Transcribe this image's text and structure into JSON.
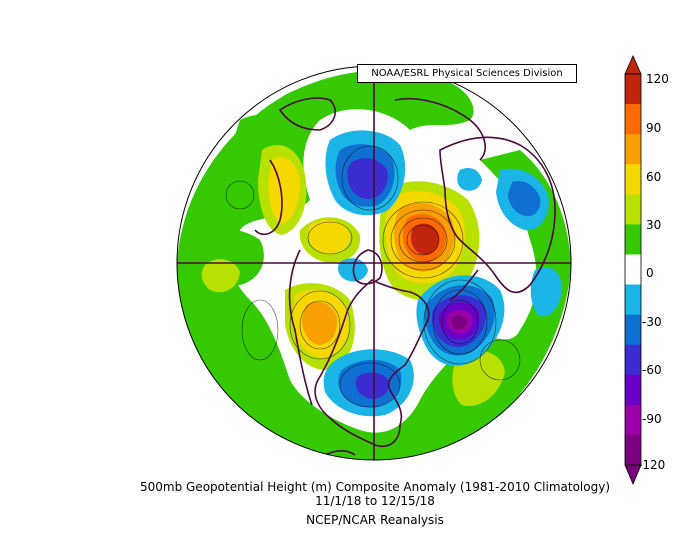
{
  "map": {
    "credit": "NOAA/ESRL Physical Sciences Division",
    "caption_line1": "500mb Geopotential Height (m) Composite Anomaly (1981-2010 Climatology)",
    "caption_line2": "11/1/18  to 12/15/18",
    "caption_line3": "NCEP/NCAR Reanalysis"
  },
  "colorbar": {
    "labels": [
      "120",
      "90",
      "60",
      "30",
      "0",
      "-30",
      "-60",
      "-90",
      "-120"
    ],
    "colors": [
      "#c0260e",
      "#ff6a00",
      "#f7a000",
      "#f5d800",
      "#b8e000",
      "#36c800",
      "#ffffff",
      "#1ab4e6",
      "#1070d2",
      "#3a2ccf",
      "#6a00c8",
      "#9b00a8",
      "#7a007e"
    ]
  },
  "anomaly_colors": {
    "green": "#36c800",
    "lightgreen": "#b8e000",
    "yellow": "#f5d800",
    "gold": "#f7a000",
    "orange": "#ff6a00",
    "red": "#c0260e",
    "cyan": "#1ab4e6",
    "blue": "#1070d2",
    "violet": "#3a2ccf",
    "purple": "#6a00c8",
    "magenta": "#9b00a8",
    "darkpurple": "#7a007e",
    "coast": "#4b0a3c"
  }
}
